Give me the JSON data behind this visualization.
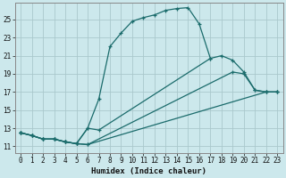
{
  "xlabel": "Humidex (Indice chaleur)",
  "xlim": [
    -0.5,
    23.5
  ],
  "ylim": [
    10.3,
    26.8
  ],
  "xticks": [
    0,
    1,
    2,
    3,
    4,
    5,
    6,
    7,
    8,
    9,
    10,
    11,
    12,
    13,
    14,
    15,
    16,
    17,
    18,
    19,
    20,
    21,
    22,
    23
  ],
  "yticks": [
    11,
    13,
    15,
    17,
    19,
    21,
    23,
    25
  ],
  "bg_color": "#cce8ec",
  "grid_color": "#aac8cc",
  "line_color": "#1a6b6b",
  "curve1_x": [
    0,
    1,
    2,
    3,
    4,
    5,
    6,
    7,
    8,
    9,
    10,
    11,
    12,
    13,
    14,
    15,
    16,
    17
  ],
  "curve1_y": [
    12.5,
    12.2,
    11.8,
    11.8,
    11.5,
    11.3,
    13.0,
    16.2,
    22.0,
    23.5,
    24.8,
    25.2,
    25.5,
    26.0,
    26.2,
    26.3,
    24.5,
    20.7
  ],
  "curve2_x": [
    0,
    1,
    2,
    3,
    4,
    5,
    6,
    7,
    17,
    18,
    19,
    20,
    21,
    22,
    23
  ],
  "curve2_y": [
    12.5,
    12.2,
    11.8,
    11.8,
    11.5,
    11.3,
    13.0,
    12.8,
    20.7,
    21.0,
    20.5,
    19.2,
    17.2,
    17.0,
    17.0
  ],
  "curve3_x": [
    0,
    1,
    2,
    3,
    4,
    5,
    6,
    19,
    20,
    21,
    22,
    23
  ],
  "curve3_y": [
    12.5,
    12.2,
    11.8,
    11.8,
    11.5,
    11.3,
    11.2,
    19.2,
    19.0,
    17.2,
    17.0,
    17.0
  ],
  "curve4_x": [
    0,
    1,
    2,
    3,
    4,
    5,
    6,
    22,
    23
  ],
  "curve4_y": [
    12.5,
    12.2,
    11.8,
    11.8,
    11.5,
    11.3,
    11.2,
    17.0,
    17.0
  ]
}
